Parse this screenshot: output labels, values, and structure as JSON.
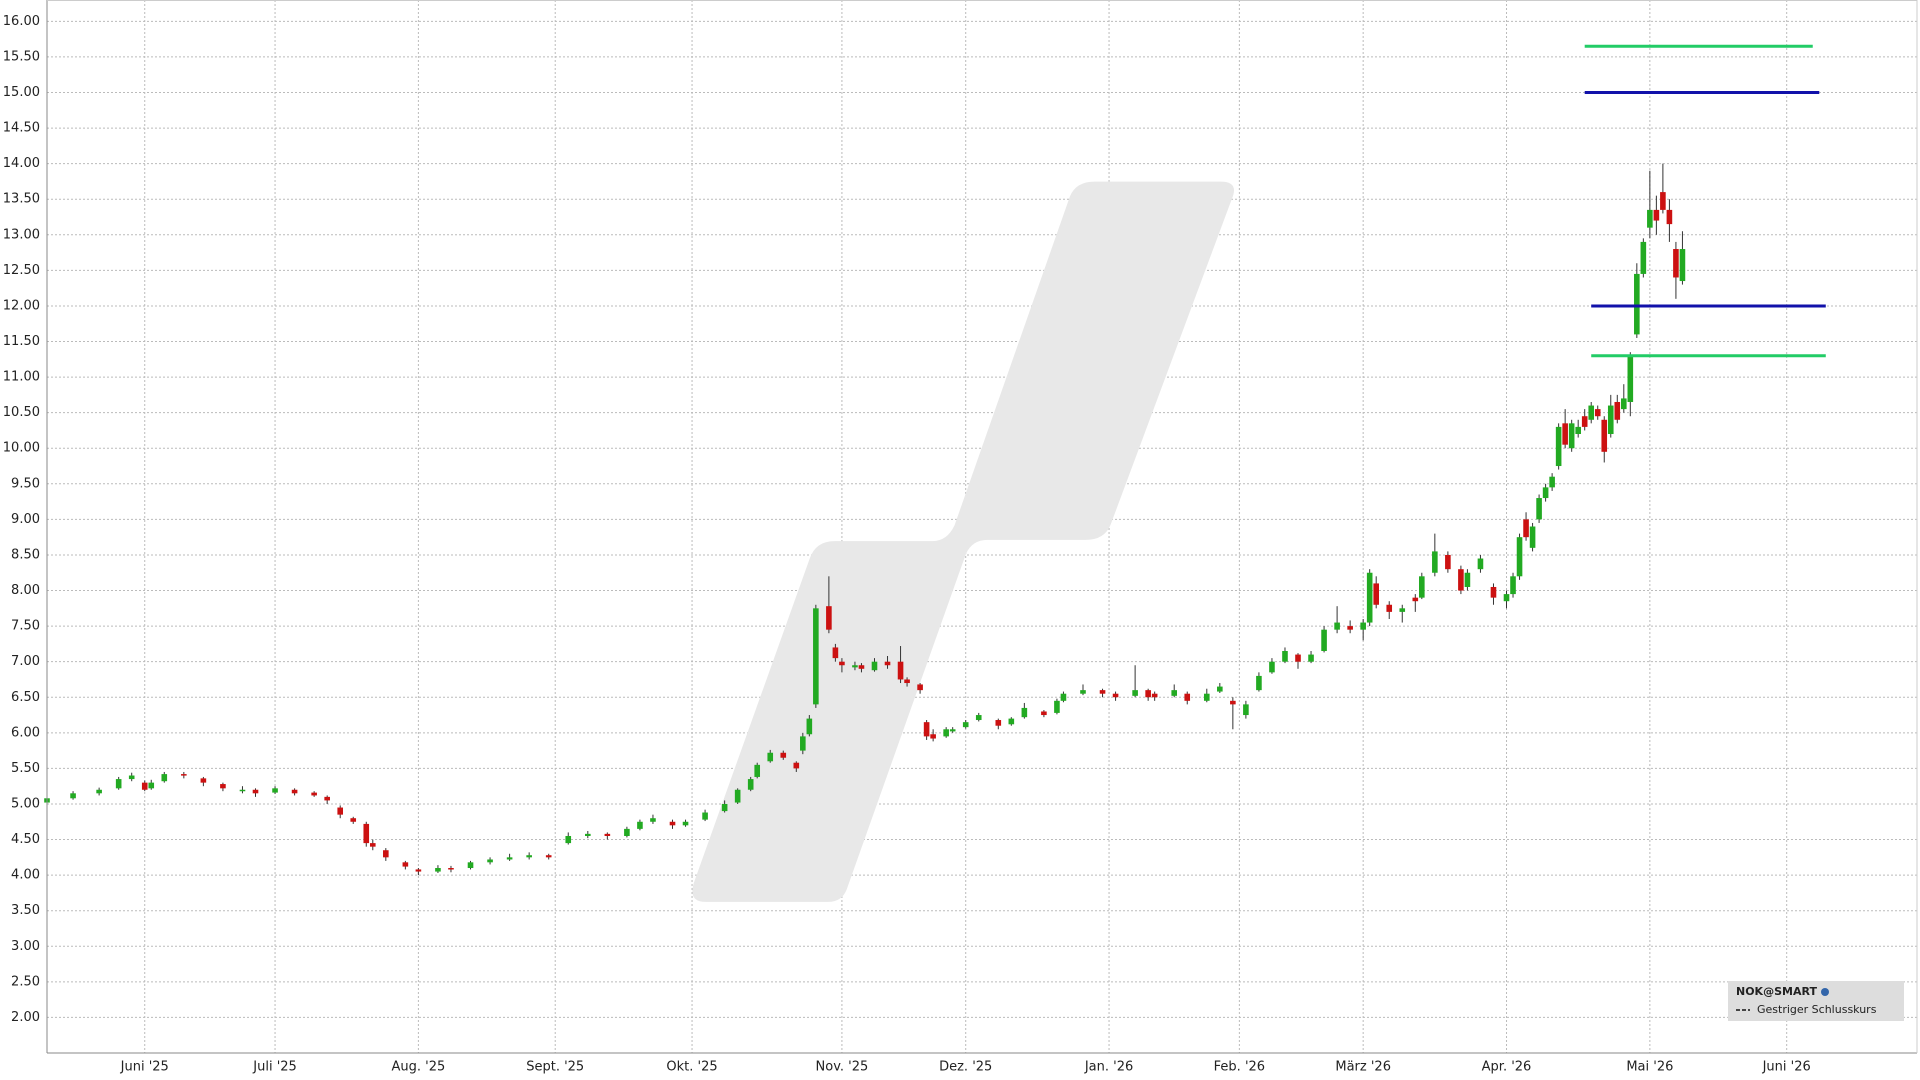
{
  "chart_data": {
    "type": "candlestick",
    "series": [
      {
        "name": "NOK@SMART",
        "up_color": "#22aa22",
        "down_color": "#cc1111",
        "x": [
          0,
          4,
          8,
          11,
          13,
          15,
          16,
          18,
          21,
          24,
          27,
          30,
          32,
          35,
          38,
          41,
          43,
          45,
          47,
          49,
          50,
          52,
          55,
          57,
          60,
          62,
          65,
          68,
          71,
          74,
          77,
          80,
          83,
          86,
          89,
          91,
          93,
          96,
          98,
          101,
          104,
          106,
          108,
          109,
          111,
          113,
          115,
          116,
          117,
          118,
          120,
          121,
          122,
          124,
          125,
          127,
          129,
          131,
          132,
          134,
          135,
          136,
          138,
          139,
          141,
          143,
          146,
          148,
          150,
          153,
          155,
          156,
          159,
          162,
          164,
          167,
          169,
          170,
          173,
          175,
          178,
          180,
          182,
          184,
          186,
          188,
          190,
          192,
          194,
          196,
          198,
          200,
          202,
          203,
          204,
          206,
          208,
          210,
          211,
          213,
          215,
          217,
          218,
          220,
          222,
          224,
          225,
          226,
          227,
          228,
          229,
          230,
          231,
          232,
          233,
          234,
          235,
          236,
          237,
          238,
          239,
          240,
          241,
          242,
          243,
          244,
          245,
          246,
          247,
          248,
          249,
          250,
          251
        ],
        "open": [
          5.02,
          5.08,
          5.15,
          5.22,
          5.35,
          5.3,
          5.22,
          5.32,
          5.42,
          5.36,
          5.28,
          5.18,
          5.2,
          5.16,
          5.2,
          5.16,
          5.1,
          4.95,
          4.8,
          4.72,
          4.45,
          4.35,
          4.18,
          4.08,
          4.05,
          4.1,
          4.1,
          4.18,
          4.22,
          4.25,
          4.28,
          4.45,
          4.55,
          4.58,
          4.55,
          4.65,
          4.75,
          4.75,
          4.7,
          4.78,
          4.9,
          5.02,
          5.2,
          5.38,
          5.6,
          5.72,
          5.58,
          5.75,
          5.98,
          6.4,
          7.78,
          7.2,
          7.0,
          6.92,
          6.95,
          6.88,
          7.0,
          7.0,
          6.75,
          6.68,
          6.15,
          5.98,
          5.95,
          6.02,
          6.08,
          6.18,
          6.18,
          6.12,
          6.22,
          6.3,
          6.28,
          6.45,
          6.55,
          6.6,
          6.55,
          6.52,
          6.6,
          6.55,
          6.52,
          6.55,
          6.45,
          6.58,
          6.45,
          6.25,
          6.6,
          6.85,
          7.0,
          7.1,
          7.0,
          7.15,
          7.45,
          7.5,
          7.45,
          7.55,
          8.1,
          7.8,
          7.7,
          7.9,
          7.9,
          8.25,
          8.5,
          8.3,
          8.05,
          8.3,
          8.05,
          7.85,
          7.95,
          8.2,
          9.0,
          8.6,
          9.0,
          9.3,
          9.45,
          9.75,
          10.35,
          10.0,
          10.2,
          10.45,
          10.4,
          10.55,
          10.4,
          10.2,
          10.65,
          10.55,
          10.65,
          11.6,
          12.45,
          13.1,
          13.35,
          13.6,
          13.35,
          12.8,
          12.35
        ],
        "high": [
          5.1,
          5.18,
          5.23,
          5.38,
          5.44,
          5.33,
          5.34,
          5.45,
          5.45,
          5.38,
          5.3,
          5.25,
          5.22,
          5.25,
          5.22,
          5.18,
          5.12,
          4.98,
          4.82,
          4.75,
          4.5,
          4.38,
          4.2,
          4.1,
          4.14,
          4.13,
          4.2,
          4.25,
          4.3,
          4.32,
          4.3,
          4.6,
          4.62,
          4.6,
          4.68,
          4.78,
          4.85,
          4.78,
          4.78,
          4.92,
          5.05,
          5.22,
          5.38,
          5.58,
          5.76,
          5.75,
          5.6,
          6.0,
          6.25,
          7.8,
          8.2,
          7.25,
          7.05,
          7.0,
          6.98,
          7.05,
          7.08,
          7.22,
          6.78,
          6.7,
          6.18,
          6.05,
          6.08,
          6.08,
          6.18,
          6.28,
          6.2,
          6.22,
          6.42,
          6.32,
          6.48,
          6.58,
          6.68,
          6.62,
          6.58,
          6.95,
          6.62,
          6.58,
          6.68,
          6.58,
          6.62,
          6.7,
          6.5,
          6.45,
          6.85,
          7.05,
          7.2,
          7.12,
          7.15,
          7.5,
          7.78,
          7.58,
          7.6,
          8.3,
          8.2,
          7.85,
          7.8,
          7.95,
          8.25,
          8.8,
          8.55,
          8.35,
          8.3,
          8.5,
          8.1,
          8.0,
          8.25,
          8.8,
          9.1,
          8.95,
          9.35,
          9.5,
          9.65,
          10.35,
          10.55,
          10.4,
          10.4,
          10.55,
          10.65,
          10.6,
          10.45,
          10.75,
          10.75,
          10.9,
          11.35,
          12.6,
          12.95,
          13.9,
          13.55,
          14.0,
          13.5,
          12.9,
          13.05
        ],
        "low": [
          5.0,
          5.06,
          5.12,
          5.2,
          5.32,
          5.18,
          5.2,
          5.3,
          5.36,
          5.25,
          5.18,
          5.15,
          5.1,
          5.14,
          5.12,
          5.1,
          5.0,
          4.8,
          4.72,
          4.4,
          4.35,
          4.2,
          4.08,
          4.0,
          4.03,
          4.04,
          4.08,
          4.15,
          4.2,
          4.22,
          4.22,
          4.43,
          4.52,
          4.5,
          4.53,
          4.63,
          4.72,
          4.65,
          4.68,
          4.76,
          4.88,
          5.0,
          5.18,
          5.36,
          5.58,
          5.62,
          5.45,
          5.7,
          5.95,
          6.35,
          7.4,
          7.0,
          6.85,
          6.88,
          6.85,
          6.86,
          6.9,
          6.7,
          6.65,
          6.55,
          5.9,
          5.88,
          5.93,
          6.0,
          6.06,
          6.16,
          6.05,
          6.1,
          6.2,
          6.22,
          6.26,
          6.43,
          6.53,
          6.5,
          6.45,
          6.5,
          6.45,
          6.45,
          6.5,
          6.4,
          6.43,
          6.56,
          6.05,
          6.2,
          6.58,
          6.83,
          6.98,
          6.9,
          6.98,
          7.13,
          7.4,
          7.4,
          7.3,
          7.5,
          7.75,
          7.6,
          7.55,
          7.7,
          7.88,
          8.2,
          8.25,
          7.95,
          8.0,
          8.25,
          7.8,
          7.75,
          7.9,
          8.15,
          8.7,
          8.55,
          8.95,
          9.25,
          9.4,
          9.7,
          10.0,
          9.95,
          10.15,
          10.25,
          10.35,
          10.4,
          9.8,
          10.15,
          10.35,
          10.5,
          10.45,
          11.55,
          12.4,
          12.95,
          13.0,
          13.3,
          12.9,
          12.1,
          12.3
        ],
        "close": [
          5.08,
          5.15,
          5.2,
          5.35,
          5.4,
          5.2,
          5.3,
          5.42,
          5.4,
          5.3,
          5.22,
          5.2,
          5.15,
          5.22,
          5.15,
          5.12,
          5.05,
          4.85,
          4.75,
          4.45,
          4.4,
          4.25,
          4.12,
          4.05,
          4.1,
          4.08,
          4.18,
          4.22,
          4.25,
          4.28,
          4.25,
          4.55,
          4.58,
          4.55,
          4.65,
          4.75,
          4.8,
          4.7,
          4.75,
          4.88,
          5.0,
          5.2,
          5.35,
          5.55,
          5.72,
          5.65,
          5.5,
          5.95,
          6.2,
          7.75,
          7.45,
          7.05,
          6.95,
          6.95,
          6.9,
          7.0,
          6.95,
          6.75,
          6.7,
          6.6,
          5.95,
          5.92,
          6.05,
          6.05,
          6.15,
          6.25,
          6.1,
          6.2,
          6.35,
          6.25,
          6.45,
          6.55,
          6.6,
          6.55,
          6.5,
          6.6,
          6.5,
          6.5,
          6.6,
          6.45,
          6.55,
          6.65,
          6.4,
          6.4,
          6.8,
          7.0,
          7.15,
          7.0,
          7.1,
          7.45,
          7.55,
          7.45,
          7.55,
          8.25,
          7.8,
          7.7,
          7.75,
          7.85,
          8.2,
          8.55,
          8.3,
          8.0,
          8.25,
          8.45,
          7.9,
          7.95,
          8.2,
          8.75,
          8.75,
          8.9,
          9.3,
          9.45,
          9.6,
          10.3,
          10.05,
          10.35,
          10.3,
          10.3,
          10.6,
          10.45,
          9.95,
          10.6,
          10.4,
          10.7,
          11.3,
          12.45,
          12.9,
          13.35,
          13.2,
          13.35,
          13.15,
          12.4,
          12.8
        ]
      }
    ],
    "reference_label": "Gestriger Schlusskurs",
    "levels": [
      {
        "value": 15.65,
        "color": "#22cc66",
        "x": [
          236,
          271
        ]
      },
      {
        "value": 15.0,
        "color": "#1111aa",
        "x": [
          236,
          272
        ]
      },
      {
        "value": 12.0,
        "color": "#1111aa",
        "x": [
          237,
          273
        ]
      },
      {
        "value": 11.3,
        "color": "#22cc66",
        "x": [
          237,
          273
        ]
      }
    ],
    "xlim": [
      0,
      287
    ],
    "ylim": [
      1.5,
      16.3
    ],
    "grid": true,
    "xticks": [
      {
        "value": 15,
        "label": "Juni '25"
      },
      {
        "value": 35,
        "label": "Juli '25"
      },
      {
        "value": 57,
        "label": "Aug. '25"
      },
      {
        "value": 78,
        "label": "Sept. '25"
      },
      {
        "value": 99,
        "label": "Okt. '25"
      },
      {
        "value": 122,
        "label": "Nov. '25"
      },
      {
        "value": 141,
        "label": "Dez. '25"
      },
      {
        "value": 163,
        "label": "Jan. '26"
      },
      {
        "value": 183,
        "label": "Feb. '26"
      },
      {
        "value": 202,
        "label": "März '26"
      },
      {
        "value": 224,
        "label": "Apr. '26"
      },
      {
        "value": 246,
        "label": "Mai '26"
      },
      {
        "value": 267,
        "label": "Juni '26"
      }
    ],
    "yticks": [
      {
        "value": 2,
        "label": "2.00"
      },
      {
        "value": 2.5,
        "label": "2.50"
      },
      {
        "value": 3,
        "label": "3.00"
      },
      {
        "value": 3.5,
        "label": "3.50"
      },
      {
        "value": 4,
        "label": "4.00"
      },
      {
        "value": 4.5,
        "label": "4.50"
      },
      {
        "value": 5,
        "label": "5.00"
      },
      {
        "value": 5.5,
        "label": "5.50"
      },
      {
        "value": 6,
        "label": "6.00"
      },
      {
        "value": 6.5,
        "label": "6.50"
      },
      {
        "value": 7,
        "label": "7.00"
      },
      {
        "value": 7.5,
        "label": "7.50"
      },
      {
        "value": 8,
        "label": "8.00"
      },
      {
        "value": 8.5,
        "label": "8.50"
      },
      {
        "value": 9,
        "label": "9.00"
      },
      {
        "value": 9.5,
        "label": "9.50"
      },
      {
        "value": 10,
        "label": "10.00"
      },
      {
        "value": 10.5,
        "label": "10.50"
      },
      {
        "value": 11,
        "label": "11.00"
      },
      {
        "value": 11.5,
        "label": "11.50"
      },
      {
        "value": 12,
        "label": "12.00"
      },
      {
        "value": 12.5,
        "label": "12.50"
      },
      {
        "value": 13,
        "label": "13.00"
      },
      {
        "value": 13.5,
        "label": "13.50"
      },
      {
        "value": 14,
        "label": "14.00"
      },
      {
        "value": 14.5,
        "label": "14.50"
      },
      {
        "value": 15,
        "label": "15.00"
      },
      {
        "value": 15.5,
        "label": "15.50"
      },
      {
        "value": 16,
        "label": "16.00"
      }
    ]
  }
}
